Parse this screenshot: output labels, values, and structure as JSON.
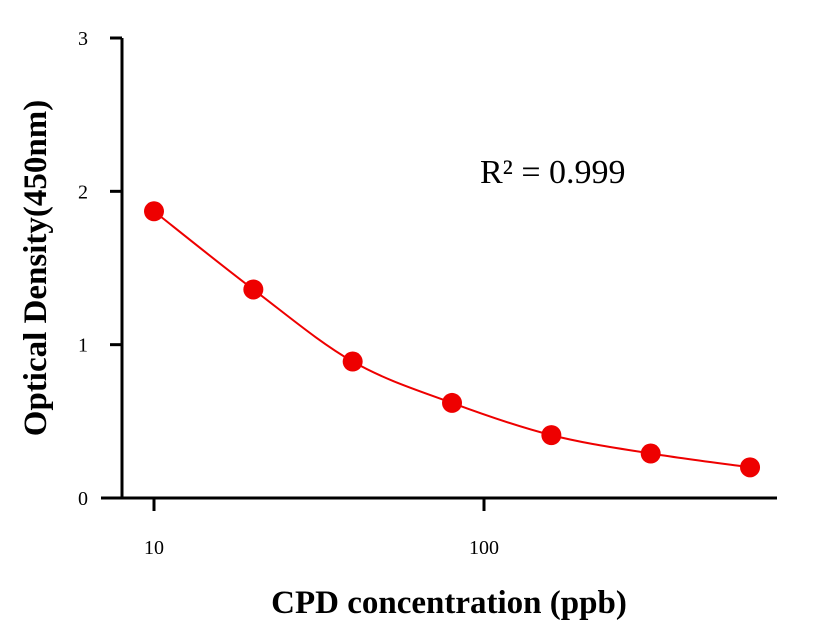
{
  "chart_data": {
    "type": "scatter",
    "title": "",
    "xlabel": "CPD concentration (ppb)",
    "ylabel": "Optical Density(450nm)",
    "x_scale": "log",
    "xlim": [
      7,
      767
    ],
    "ylim": [
      0,
      3
    ],
    "x_ticks": [
      10,
      100
    ],
    "x_tick_labels": [
      "10",
      "100"
    ],
    "y_ticks": [
      0,
      1,
      2,
      3
    ],
    "y_tick_labels": [
      "0",
      "1",
      "2",
      "3"
    ],
    "grid": false,
    "legend": "none",
    "annotation": "R² = 0.999",
    "series": [
      {
        "x": [
          10,
          20,
          40,
          80,
          160,
          320,
          640
        ],
        "y": [
          1.87,
          1.36,
          0.89,
          0.62,
          0.41,
          0.29,
          0.2
        ],
        "color": "#ee0000",
        "fit_line": true
      }
    ]
  }
}
